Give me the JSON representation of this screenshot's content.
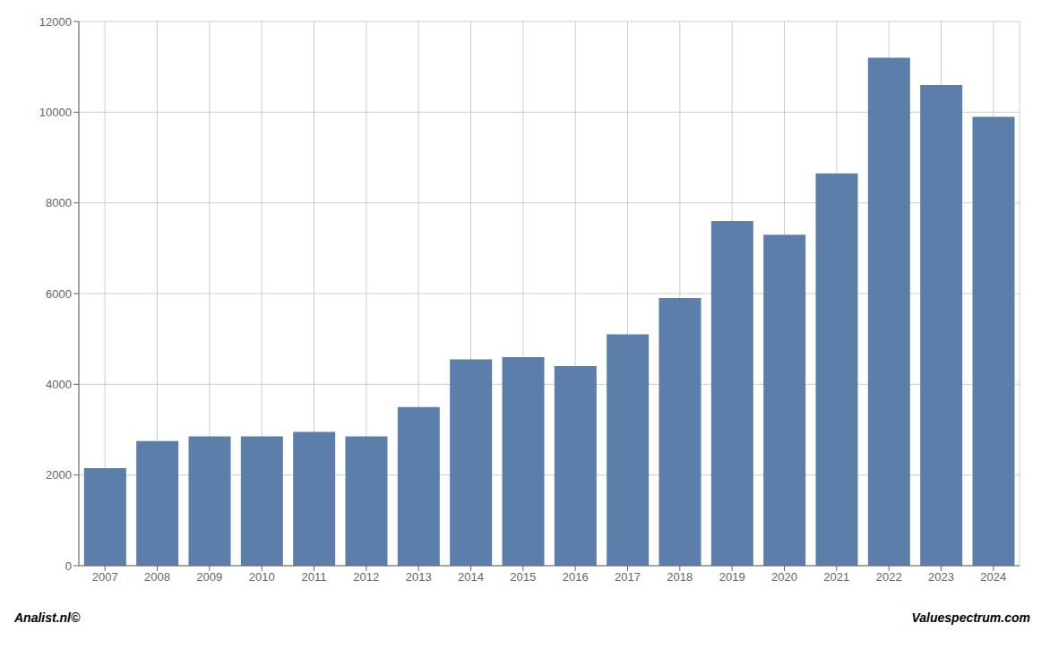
{
  "chart_data": {
    "type": "bar",
    "categories": [
      "2007",
      "2008",
      "2009",
      "2010",
      "2011",
      "2012",
      "2013",
      "2014",
      "2015",
      "2016",
      "2017",
      "2018",
      "2019",
      "2020",
      "2021",
      "2022",
      "2023",
      "2024"
    ],
    "values": [
      2150,
      2750,
      2850,
      2850,
      2950,
      2850,
      3500,
      4550,
      4600,
      4400,
      5100,
      5900,
      7600,
      7300,
      8650,
      11200,
      10600,
      9900
    ],
    "color": "#5b7faa",
    "ylim": [
      0,
      12000
    ],
    "yticks": [
      0,
      2000,
      4000,
      6000,
      8000,
      10000,
      12000
    ],
    "grid": true,
    "annotations": [
      "Analist.nl©",
      "Valuespectrum.com"
    ]
  }
}
